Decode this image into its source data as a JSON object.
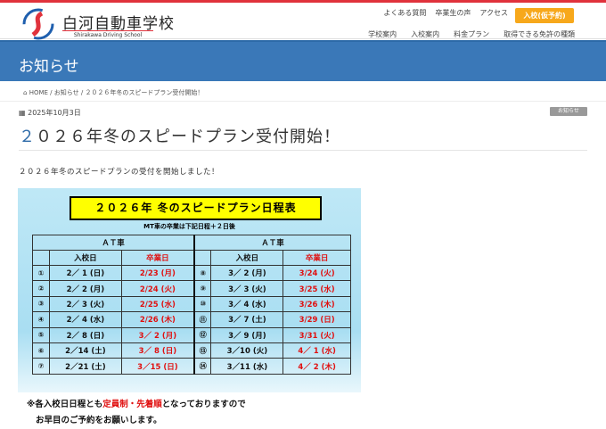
{
  "header": {
    "brand": "白河自動車学校",
    "brand_sub": "Shirakawa Driving School",
    "nav_top": [
      "よくある質問",
      "卒業生の声",
      "アクセス"
    ],
    "cta": "入校(仮予約)",
    "nav_main": [
      "学校案内",
      "入校案内",
      "料金プラン",
      "取得できる免許の種類"
    ]
  },
  "hero": {
    "title": "お知らせ"
  },
  "breadcrumb": [
    "HOME",
    "お知らせ",
    "２０２６年冬のスピードプラン受付開始！"
  ],
  "post": {
    "date": "2025年10月3日",
    "category": "お知らせ",
    "title_first": "２",
    "title_rest": "０２６年冬のスピードプラン受付開始！",
    "lead": "２０２６年冬のスピードプランの受付を開始しました！"
  },
  "poster": {
    "title": "２０２６年 冬のスピードプラン日程表",
    "subtitle": "MT車の卒業は下記日程＋２日後",
    "group_header": "ＡＴ車",
    "col_entry": "入校日",
    "col_grad": "卒業日",
    "rows": [
      [
        "①",
        "2／ 1 (日)",
        "2/23 (月)",
        "⑧",
        "3／ 2 (月)",
        "3/24 (火)"
      ],
      [
        "②",
        "2／ 2 (月)",
        "2/24 (火)",
        "⑨",
        "3／ 3 (火)",
        "3/25 (水)"
      ],
      [
        "③",
        "2／ 3 (火)",
        "2/25 (水)",
        "⑩",
        "3／ 4 (水)",
        "3/26 (木)"
      ],
      [
        "④",
        "2／ 4 (水)",
        "2/26 (木)",
        "⑪",
        "3／ 7 (土)",
        "3/29 (日)"
      ],
      [
        "⑤",
        "2／ 8 (日)",
        "3／ 2 (月)",
        "⑫",
        "3／ 9 (月)",
        "3/31 (火)"
      ],
      [
        "⑥",
        "2／14 (土)",
        "3／ 8 (日)",
        "⑬",
        "3／10 (火)",
        "4／ 1 (水)"
      ],
      [
        "⑦",
        "2／21 (土)",
        "3／15 (日)",
        "⑭",
        "3／11 (水)",
        "4／ 2 (木)"
      ]
    ],
    "note_a": "※各入校日日程とも",
    "note_red": "定員制・先着順",
    "note_b": "となっておりますので",
    "note_line2": "お早目のご予約をお願いします。"
  },
  "colors": {
    "accent": "#3a78b8",
    "cta": "#f7a81b",
    "red": "#e01010"
  }
}
